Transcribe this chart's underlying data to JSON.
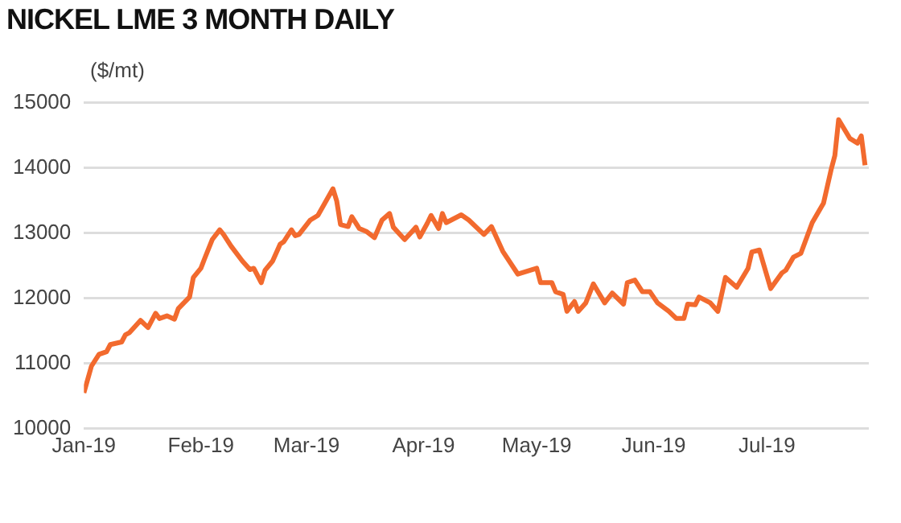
{
  "chart_data": {
    "type": "line",
    "title": "NICKEL LME 3 MONTH DAILY",
    "ylabel": "($/mt)",
    "x": [
      "2019-01-01",
      "2019-01-03",
      "2019-01-05",
      "2019-01-07",
      "2019-01-08",
      "2019-01-11",
      "2019-01-12",
      "2019-01-13",
      "2019-01-16",
      "2019-01-18",
      "2019-01-20",
      "2019-01-21",
      "2019-01-23",
      "2019-01-25",
      "2019-01-26",
      "2019-01-29",
      "2019-01-30",
      "2019-02-01",
      "2019-02-02",
      "2019-02-04",
      "2019-02-06",
      "2019-02-07",
      "2019-02-09",
      "2019-02-12",
      "2019-02-14",
      "2019-02-15",
      "2019-02-17",
      "2019-02-18",
      "2019-02-20",
      "2019-02-22",
      "2019-02-23",
      "2019-02-25",
      "2019-02-26",
      "2019-02-27",
      "2019-03-02",
      "2019-03-04",
      "2019-03-08",
      "2019-03-09",
      "2019-03-10",
      "2019-03-12",
      "2019-03-13",
      "2019-03-15",
      "2019-03-17",
      "2019-03-19",
      "2019-03-21",
      "2019-03-23",
      "2019-03-24",
      "2019-03-27",
      "2019-03-30",
      "2019-03-31",
      "2019-04-02",
      "2019-04-03",
      "2019-04-05",
      "2019-04-06",
      "2019-04-07",
      "2019-04-11",
      "2019-04-13",
      "2019-04-17",
      "2019-04-19",
      "2019-04-22",
      "2019-04-26",
      "2019-05-01",
      "2019-05-02",
      "2019-05-05",
      "2019-05-06",
      "2019-05-08",
      "2019-05-09",
      "2019-05-11",
      "2019-05-12",
      "2019-05-14",
      "2019-05-16",
      "2019-05-19",
      "2019-05-21",
      "2019-05-24",
      "2019-05-25",
      "2019-05-27",
      "2019-05-29",
      "2019-05-31",
      "2019-06-02",
      "2019-06-05",
      "2019-06-07",
      "2019-06-09",
      "2019-06-10",
      "2019-06-12",
      "2019-06-13",
      "2019-06-16",
      "2019-06-18",
      "2019-06-20",
      "2019-06-23",
      "2019-06-26",
      "2019-06-27",
      "2019-06-29",
      "2019-07-02",
      "2019-07-05",
      "2019-07-06",
      "2019-07-08",
      "2019-07-10",
      "2019-07-13",
      "2019-07-16",
      "2019-07-18",
      "2019-07-19",
      "2019-07-20",
      "2019-07-23",
      "2019-07-25",
      "2019-07-26",
      "2019-07-27"
    ],
    "series": [
      {
        "color": "#f26a2e",
        "values": [
          10550,
          10960,
          11140,
          11180,
          11290,
          11330,
          11440,
          11470,
          11660,
          11550,
          11770,
          11690,
          11730,
          11680,
          11840,
          12020,
          12320,
          12460,
          12610,
          12900,
          13050,
          12980,
          12800,
          12570,
          12440,
          12460,
          12240,
          12430,
          12570,
          12830,
          12870,
          13050,
          12960,
          12980,
          13200,
          13270,
          13680,
          13490,
          13130,
          13100,
          13250,
          13070,
          13020,
          12930,
          13200,
          13300,
          13090,
          12900,
          13090,
          12940,
          13150,
          13270,
          13070,
          13300,
          13160,
          13280,
          13200,
          12980,
          13100,
          12720,
          12370,
          12460,
          12240,
          12240,
          12100,
          12060,
          11800,
          11950,
          11800,
          11930,
          12220,
          11930,
          12080,
          11910,
          12240,
          12280,
          12100,
          12100,
          11930,
          11800,
          11690,
          11690,
          11910,
          11900,
          12020,
          11930,
          11800,
          12320,
          12170,
          12460,
          12710,
          12740,
          12150,
          12390,
          12430,
          12630,
          12690,
          13160,
          13460,
          13970,
          14190,
          14740,
          14450,
          14380,
          14490,
          14040
        ]
      }
    ],
    "xlim": [
      "2019-01-01",
      "2019-07-28"
    ],
    "xticks": [
      {
        "value": "2019-01-01",
        "label": "Jan-19"
      },
      {
        "value": "2019-02-01",
        "label": "Feb-19"
      },
      {
        "value": "2019-03-01",
        "label": "Mar-19"
      },
      {
        "value": "2019-04-01",
        "label": "Apr-19"
      },
      {
        "value": "2019-05-01",
        "label": "May-19"
      },
      {
        "value": "2019-06-01",
        "label": "Jun-19"
      },
      {
        "value": "2019-07-01",
        "label": "Jul-19"
      }
    ],
    "ylim": [
      10000,
      15000
    ],
    "yticks": [
      10000,
      11000,
      12000,
      13000,
      14000,
      15000
    ],
    "grid": "y",
    "legend": false,
    "marker": "none",
    "line_style": "solid"
  }
}
